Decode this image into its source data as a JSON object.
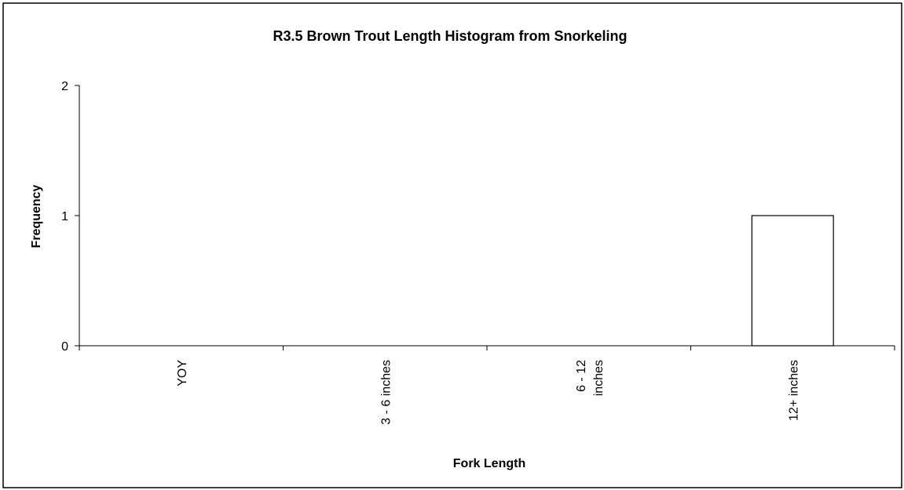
{
  "chart_data": {
    "type": "bar",
    "title": "R3.5 Brown Trout Length Histogram from Snorkeling",
    "xlabel": "Fork Length",
    "ylabel": "Frequency",
    "categories": [
      "YOY",
      "3 - 6 inches",
      "6 - 12 inches",
      "12+ inches"
    ],
    "category_label_lines": [
      [
        "YOY"
      ],
      [
        "3 - 6 inches"
      ],
      [
        "6 - 12",
        "inches"
      ],
      [
        "12+ inches"
      ]
    ],
    "values": [
      0,
      0,
      0,
      1
    ],
    "ylim": [
      0,
      2
    ],
    "yticks": [
      0,
      1,
      2
    ],
    "grid": false,
    "legend": "none",
    "bar_fill": "#ffffff",
    "bar_stroke": "#000000"
  }
}
